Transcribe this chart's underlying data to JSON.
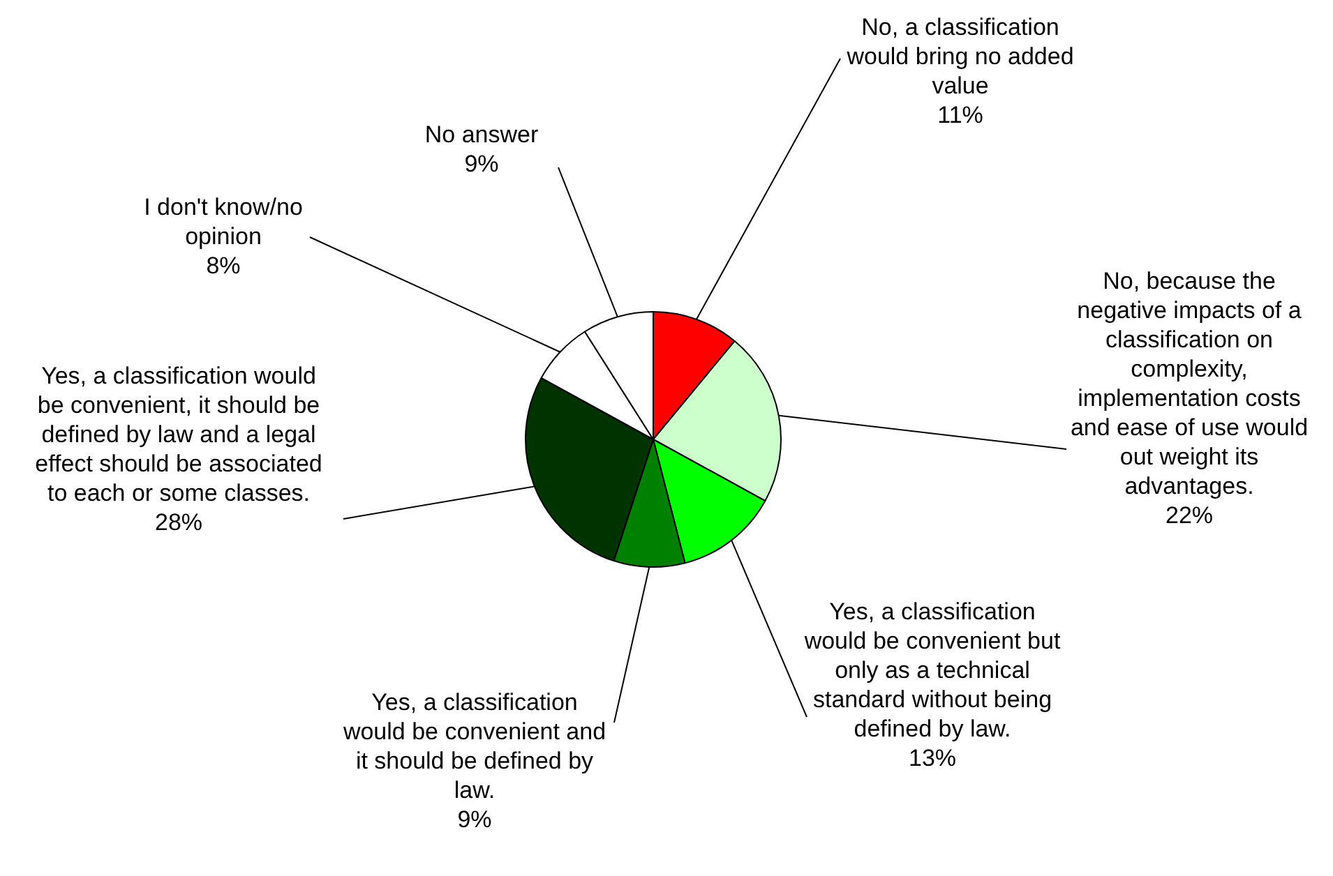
{
  "chart_data": {
    "type": "pie",
    "categories": [
      "No, a classification would bring no added value",
      "No, because the negative impacts of a classification on complexity, implementation costs and ease of use would out weight its advantages.",
      "Yes, a classification would be convenient but only as a technical standard without being defined by law.",
      "Yes, a classification would be convenient and it should be defined by law.",
      "Yes, a classification would be convenient, it should be defined by law and a legal effect should be associated to each or some classes.",
      "I don't know/no opinion",
      "No answer"
    ],
    "values": [
      11,
      22,
      13,
      9,
      28,
      8,
      9
    ],
    "value_labels": [
      "11%",
      "22%",
      "13%",
      "9%",
      "28%",
      "8%",
      "9%"
    ],
    "colors": [
      "#ff0000",
      "#ccffcc",
      "#00ff00",
      "#008000",
      "#003300",
      "#ffffff",
      "#ffffff"
    ],
    "legend": false
  }
}
